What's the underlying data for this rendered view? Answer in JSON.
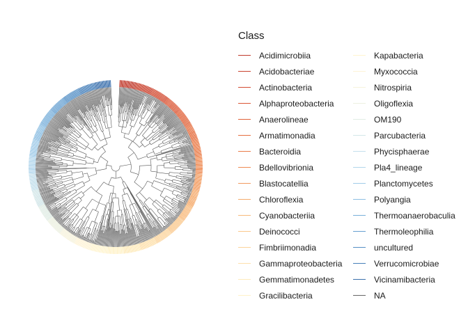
{
  "legend": {
    "title": "Class",
    "entries": [
      {
        "label": "Acidimicrobiia",
        "color": "#c0392b"
      },
      {
        "label": "Acidobacteriae",
        "color": "#c9412d"
      },
      {
        "label": "Actinobacteria",
        "color": "#d24a30"
      },
      {
        "label": "Alphaproteobacteria",
        "color": "#da5533"
      },
      {
        "label": "Anaerolineae",
        "color": "#e06138"
      },
      {
        "label": "Armatimonadia",
        "color": "#e56e3f"
      },
      {
        "label": "Bacteroidia",
        "color": "#ea7b47"
      },
      {
        "label": "Bdellovibrionia",
        "color": "#ef8a52"
      },
      {
        "label": "Blastocatellia",
        "color": "#f29a5e"
      },
      {
        "label": "Chloroflexia",
        "color": "#f5aa6b"
      },
      {
        "label": "Cyanobacteriia",
        "color": "#f8b97a"
      },
      {
        "label": "Deinococci",
        "color": "#fac78a"
      },
      {
        "label": "Fimbriimonadia",
        "color": "#fcd49b"
      },
      {
        "label": "Gammaproteobacteria",
        "color": "#fde0ab"
      },
      {
        "label": "Gemmatimonadetes",
        "color": "#feeaba"
      },
      {
        "label": "Gracilibacteria",
        "color": "#fff2c8"
      },
      {
        "label": "Kapabacteria",
        "color": "#fff4cf"
      },
      {
        "label": "Myxococcia",
        "color": "#fef3d6"
      },
      {
        "label": "Nitrospiria",
        "color": "#f6f2dc"
      },
      {
        "label": "Oligoflexia",
        "color": "#ecf0e0"
      },
      {
        "label": "OM190",
        "color": "#e0ece4"
      },
      {
        "label": "Parcubacteria",
        "color": "#d2e6e8"
      },
      {
        "label": "Phycisphaerae",
        "color": "#c3dfec"
      },
      {
        "label": "Pla4_lineage",
        "color": "#b2d6ec"
      },
      {
        "label": "Planctomycetes",
        "color": "#a0cbe8"
      },
      {
        "label": "Polyangia",
        "color": "#8cbee2"
      },
      {
        "label": "Thermoanaerobaculia",
        "color": "#78afda"
      },
      {
        "label": "Thermoleophilia",
        "color": "#659fd0"
      },
      {
        "label": "uncultured",
        "color": "#548fc5"
      },
      {
        "label": "Verrucomicrobiae",
        "color": "#467fb9"
      },
      {
        "label": "Vicinamibacteria",
        "color": "#3a6fac"
      },
      {
        "label": "NA",
        "color": "#666666"
      }
    ]
  }
}
